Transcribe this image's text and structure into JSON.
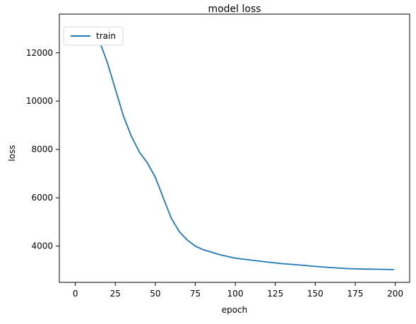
{
  "chart_data": {
    "type": "line",
    "title": "model loss",
    "xlabel": "epoch",
    "ylabel": "loss",
    "xlim": [
      -10,
      209
    ],
    "ylim": [
      2500,
      13600
    ],
    "x_ticks": [
      0,
      25,
      50,
      75,
      100,
      125,
      150,
      175,
      200
    ],
    "y_ticks": [
      4000,
      6000,
      8000,
      10000,
      12000
    ],
    "grid": false,
    "legend": {
      "position": "top-left",
      "entries": [
        "train"
      ]
    },
    "series": [
      {
        "name": "train",
        "color": "#1f77b4",
        "x": [
          0,
          5,
          10,
          15,
          20,
          25,
          30,
          35,
          40,
          45,
          50,
          55,
          60,
          65,
          70,
          75,
          80,
          90,
          100,
          110,
          120,
          130,
          140,
          150,
          160,
          170,
          180,
          190,
          199
        ],
        "y": [
          13050,
          13040,
          12950,
          12500,
          11600,
          10500,
          9400,
          8550,
          7900,
          7450,
          6850,
          6000,
          5150,
          4600,
          4250,
          4000,
          3850,
          3650,
          3500,
          3420,
          3340,
          3270,
          3220,
          3160,
          3110,
          3070,
          3050,
          3040,
          3030
        ]
      }
    ]
  }
}
